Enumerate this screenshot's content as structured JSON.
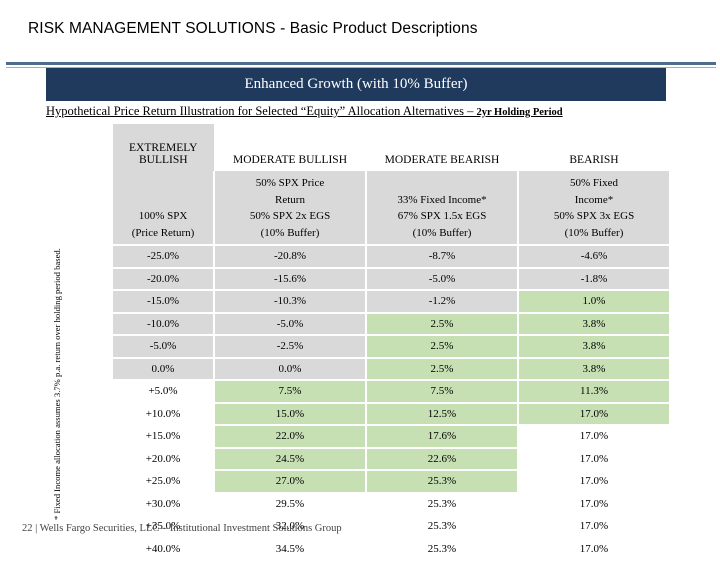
{
  "page_title": "RISK MANAGEMENT SOLUTIONS - Basic Product Descriptions",
  "banner": "Enhanced Growth (with 10% Buffer)",
  "subtitle_main": "Hypothetical Price Return Illustration for Selected “Equity” Allocation Alternatives – ",
  "subtitle_small": "2yr Holding Period",
  "side_note": "* Fixed Income allocation assumes 3.7% p.a. return over holding period based.",
  "footer": "22 |   Wells Fargo Securities, LLC – Institutional Investment Solutions Group",
  "table": {
    "headers": [
      "EXTREMELY BULLISH",
      "MODERATE BULLISH",
      "MODERATE BEARISH",
      "BEARISH"
    ],
    "descriptions": [
      [
        "100% SPX",
        "(Price Return)"
      ],
      [
        "50% SPX Price",
        "Return",
        "50% SPX 2x EGS",
        "(10%  Buffer)"
      ],
      [
        "33% Fixed Income*",
        "67% SPX 1.5x EGS",
        "(10%  Buffer)"
      ],
      [
        "50% Fixed",
        "Income*",
        "50% SPX 3x EGS",
        "(10%  Buffer)"
      ]
    ],
    "rows": [
      [
        "-25.0%",
        "-20.8%",
        "-8.7%",
        "-4.6%"
      ],
      [
        "-20.0%",
        "-15.6%",
        "-5.0%",
        "-1.8%"
      ],
      [
        "-15.0%",
        "-10.3%",
        "-1.2%",
        "1.0%"
      ],
      [
        "-10.0%",
        "-5.0%",
        "2.5%",
        "3.8%"
      ],
      [
        "-5.0%",
        "-2.5%",
        "2.5%",
        "3.8%"
      ],
      [
        "0.0%",
        "0.0%",
        "2.5%",
        "3.8%"
      ],
      [
        "+5.0%",
        "7.5%",
        "7.5%",
        "11.3%"
      ],
      [
        "+10.0%",
        "15.0%",
        "12.5%",
        "17.0%"
      ],
      [
        "+15.0%",
        "22.0%",
        "17.6%",
        "17.0%"
      ],
      [
        "+20.0%",
        "24.5%",
        "22.6%",
        "17.0%"
      ],
      [
        "+25.0%",
        "27.0%",
        "25.3%",
        "17.0%"
      ],
      [
        "+30.0%",
        "29.5%",
        "25.3%",
        "17.0%"
      ],
      [
        "+35.0%",
        "32.0%",
        "25.3%",
        "17.0%"
      ],
      [
        "+40.0%",
        "34.5%",
        "25.3%",
        "17.0%"
      ]
    ],
    "highlight": [
      [
        "gray",
        "gray",
        "gray",
        "gray"
      ],
      [
        "gray",
        "gray",
        "gray",
        "gray"
      ],
      [
        "gray",
        "gray",
        "gray",
        "green"
      ],
      [
        "gray",
        "gray",
        "green",
        "green"
      ],
      [
        "gray",
        "gray",
        "green",
        "green"
      ],
      [
        "gray",
        "gray",
        "green",
        "green"
      ],
      [
        "white",
        "green",
        "green",
        "green"
      ],
      [
        "white",
        "green",
        "green",
        "green"
      ],
      [
        "white",
        "green",
        "green",
        "white"
      ],
      [
        "white",
        "green",
        "green",
        "white"
      ],
      [
        "white",
        "green",
        "green",
        "white"
      ],
      [
        "white",
        "white",
        "white",
        "white"
      ],
      [
        "white",
        "white",
        "white",
        "white"
      ],
      [
        "white",
        "white",
        "white",
        "white"
      ]
    ]
  }
}
